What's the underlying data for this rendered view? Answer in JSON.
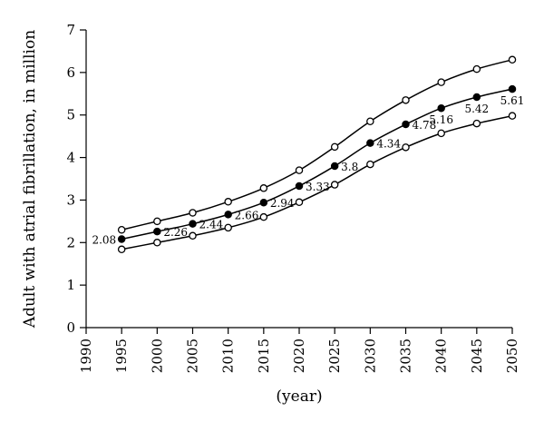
{
  "chart_data": {
    "type": "line",
    "title": "",
    "xlabel": "(year)",
    "ylabel": "Adult with atrial fibrillation, in million",
    "xlim": [
      1990,
      2050
    ],
    "ylim": [
      0,
      7
    ],
    "x_ticks": [
      1990,
      1995,
      2000,
      2005,
      2010,
      2015,
      2020,
      2025,
      2030,
      2035,
      2040,
      2045,
      2050
    ],
    "y_ticks": [
      0,
      1,
      2,
      3,
      4,
      5,
      6,
      7
    ],
    "grid": false,
    "legend": "none",
    "x": [
      1995,
      2000,
      2005,
      2010,
      2015,
      2020,
      2025,
      2030,
      2035,
      2040,
      2045,
      2050
    ],
    "series": [
      {
        "marker": "open-circle",
        "values": [
          2.3,
          2.5,
          2.7,
          2.96,
          3.28,
          3.7,
          4.25,
          4.85,
          5.35,
          5.77,
          6.08,
          6.3
        ]
      },
      {
        "marker": "filled-circle",
        "values": [
          2.08,
          2.26,
          2.44,
          2.66,
          2.94,
          3.33,
          3.8,
          4.34,
          4.78,
          5.16,
          5.42,
          5.61
        ],
        "data_labels": [
          "2.08",
          "2.26",
          "2.44",
          "2.66",
          "2.94",
          "3.33",
          "3.8",
          "4.34",
          "4.78",
          "5.16",
          "5.42",
          "5.61"
        ]
      },
      {
        "marker": "open-circle",
        "values": [
          1.84,
          2.0,
          2.16,
          2.35,
          2.6,
          2.95,
          3.36,
          3.84,
          4.24,
          4.57,
          4.8,
          4.98
        ]
      }
    ]
  }
}
